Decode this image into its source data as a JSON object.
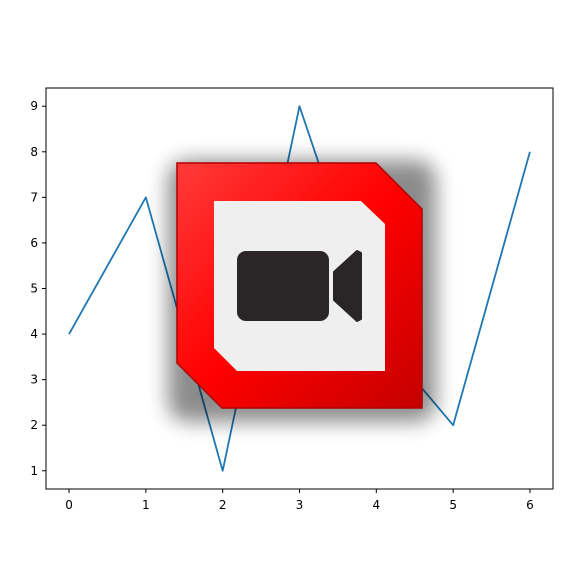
{
  "chart_data": {
    "type": "line",
    "title": "",
    "xlabel": "",
    "ylabel": "",
    "x": [
      0,
      1,
      2,
      3,
      4,
      5,
      6
    ],
    "series": [
      {
        "values": [
          4,
          7,
          1,
          9,
          4,
          2,
          8
        ],
        "color": "#1f77b4"
      }
    ],
    "xlim": [
      -0.3,
      6.3
    ],
    "ylim": [
      0.6,
      9.4
    ],
    "xticks": [
      0,
      1,
      2,
      3,
      4,
      5,
      6
    ],
    "yticks": [
      1,
      2,
      3,
      4,
      5,
      6,
      7,
      8,
      9
    ],
    "grid": false,
    "legend": "none"
  },
  "overlay": {
    "icon": "video-camera-icon",
    "frame_color": "#ff0000",
    "panel_color": "#efefef",
    "glyph_color": "#2a2627"
  }
}
